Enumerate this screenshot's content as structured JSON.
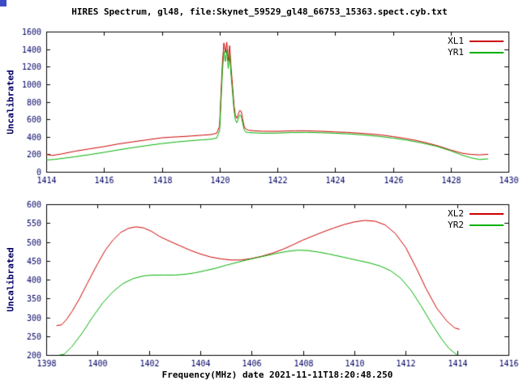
{
  "title": "HIRES Spectrum, gl48, file:Skynet_59529_gl48_66753_15363.spect.cyb.txt",
  "xlabel": "Frequency(MHz) date 2021-11-11T18:20:48.250",
  "colors": {
    "series_red": "#cc0000",
    "series_green": "#00b000",
    "axis": "#000000",
    "tick_text": "#000066",
    "corner_marker": "#3b4bc8"
  },
  "chart_data": [
    {
      "type": "line",
      "ylabel": "Uncalibrated",
      "xlim": [
        1414,
        1430
      ],
      "xtick_step": 2,
      "ylim": [
        0,
        1600
      ],
      "ytick_step": 200,
      "grid": false,
      "legend_position": "top-right",
      "series": [
        {
          "name": "XL1",
          "color": "#cc0000",
          "points": [
            [
              1414.0,
              200
            ],
            [
              1414.2,
              186
            ],
            [
              1414.5,
              202
            ],
            [
              1415.0,
              235
            ],
            [
              1415.5,
              262
            ],
            [
              1416.0,
              288
            ],
            [
              1416.5,
              318
            ],
            [
              1417.0,
              342
            ],
            [
              1417.5,
              365
            ],
            [
              1418.0,
              388
            ],
            [
              1418.3,
              395
            ],
            [
              1418.6,
              400
            ],
            [
              1419.0,
              408
            ],
            [
              1419.4,
              418
            ],
            [
              1419.7,
              425
            ],
            [
              1419.9,
              440
            ],
            [
              1420.0,
              520
            ],
            [
              1420.05,
              900
            ],
            [
              1420.1,
              1250
            ],
            [
              1420.15,
              1470
            ],
            [
              1420.2,
              1360
            ],
            [
              1420.25,
              1480
            ],
            [
              1420.3,
              1270
            ],
            [
              1420.35,
              1440
            ],
            [
              1420.4,
              1180
            ],
            [
              1420.45,
              980
            ],
            [
              1420.5,
              760
            ],
            [
              1420.55,
              640
            ],
            [
              1420.6,
              610
            ],
            [
              1420.65,
              660
            ],
            [
              1420.7,
              700
            ],
            [
              1420.75,
              690
            ],
            [
              1420.8,
              600
            ],
            [
              1420.85,
              520
            ],
            [
              1420.9,
              490
            ],
            [
              1421.0,
              475
            ],
            [
              1421.2,
              468
            ],
            [
              1421.5,
              462
            ],
            [
              1422.0,
              462
            ],
            [
              1422.3,
              465
            ],
            [
              1422.6,
              468
            ],
            [
              1423.0,
              468
            ],
            [
              1423.3,
              465
            ],
            [
              1423.6,
              462
            ],
            [
              1424.0,
              455
            ],
            [
              1424.4,
              450
            ],
            [
              1424.8,
              442
            ],
            [
              1425.2,
              432
            ],
            [
              1425.6,
              420
            ],
            [
              1426.0,
              402
            ],
            [
              1426.4,
              382
            ],
            [
              1426.8,
              358
            ],
            [
              1427.2,
              328
            ],
            [
              1427.6,
              292
            ],
            [
              1428.0,
              248
            ],
            [
              1428.4,
              212
            ],
            [
              1428.7,
              198
            ],
            [
              1429.0,
              193
            ],
            [
              1429.3,
              200
            ]
          ]
        },
        {
          "name": "YR1",
          "color": "#00b000",
          "points": [
            [
              1414.0,
              135
            ],
            [
              1414.3,
              142
            ],
            [
              1415.0,
              172
            ],
            [
              1415.5,
              196
            ],
            [
              1416.0,
              222
            ],
            [
              1416.5,
              250
            ],
            [
              1417.0,
              276
            ],
            [
              1417.5,
              300
            ],
            [
              1418.0,
              322
            ],
            [
              1418.5,
              340
            ],
            [
              1419.0,
              355
            ],
            [
              1419.4,
              365
            ],
            [
              1419.7,
              372
            ],
            [
              1419.9,
              385
            ],
            [
              1420.0,
              470
            ],
            [
              1420.05,
              800
            ],
            [
              1420.1,
              1150
            ],
            [
              1420.15,
              1370
            ],
            [
              1420.2,
              1260
            ],
            [
              1420.25,
              1390
            ],
            [
              1420.3,
              1180
            ],
            [
              1420.35,
              1340
            ],
            [
              1420.4,
              1090
            ],
            [
              1420.45,
              900
            ],
            [
              1420.5,
              700
            ],
            [
              1420.55,
              590
            ],
            [
              1420.6,
              560
            ],
            [
              1420.65,
              610
            ],
            [
              1420.7,
              650
            ],
            [
              1420.75,
              635
            ],
            [
              1420.8,
              555
            ],
            [
              1420.85,
              480
            ],
            [
              1420.9,
              455
            ],
            [
              1421.0,
              448
            ],
            [
              1421.5,
              440
            ],
            [
              1422.0,
              442
            ],
            [
              1422.5,
              448
            ],
            [
              1423.0,
              450
            ],
            [
              1423.5,
              446
            ],
            [
              1424.0,
              440
            ],
            [
              1424.5,
              432
            ],
            [
              1425.0,
              420
            ],
            [
              1425.5,
              405
            ],
            [
              1426.0,
              385
            ],
            [
              1426.5,
              360
            ],
            [
              1427.0,
              330
            ],
            [
              1427.5,
              292
            ],
            [
              1428.0,
              240
            ],
            [
              1428.4,
              190
            ],
            [
              1428.7,
              160
            ],
            [
              1429.0,
              140
            ],
            [
              1429.3,
              148
            ]
          ]
        }
      ]
    },
    {
      "type": "line",
      "ylabel": "Uncalibrated",
      "xlim": [
        1398,
        1416
      ],
      "xtick_step": 2,
      "ylim": [
        200,
        600
      ],
      "ytick_step": 50,
      "grid": false,
      "legend_position": "top-right",
      "series": [
        {
          "name": "XL2",
          "color": "#cc0000",
          "points": [
            [
              1398.4,
              278
            ],
            [
              1398.6,
              280
            ],
            [
              1398.8,
              295
            ],
            [
              1399.0,
              315
            ],
            [
              1399.3,
              350
            ],
            [
              1399.6,
              390
            ],
            [
              1400.0,
              442
            ],
            [
              1400.3,
              478
            ],
            [
              1400.6,
              505
            ],
            [
              1400.9,
              525
            ],
            [
              1401.2,
              536
            ],
            [
              1401.5,
              540
            ],
            [
              1401.8,
              537
            ],
            [
              1402.1,
              528
            ],
            [
              1402.4,
              515
            ],
            [
              1402.8,
              502
            ],
            [
              1403.2,
              490
            ],
            [
              1403.6,
              478
            ],
            [
              1404.0,
              468
            ],
            [
              1404.4,
              460
            ],
            [
              1404.8,
              455
            ],
            [
              1405.2,
              452
            ],
            [
              1405.6,
              452
            ],
            [
              1406.0,
              456
            ],
            [
              1406.4,
              462
            ],
            [
              1406.8,
              470
            ],
            [
              1407.2,
              480
            ],
            [
              1407.6,
              492
            ],
            [
              1408.0,
              505
            ],
            [
              1408.4,
              516
            ],
            [
              1408.8,
              527
            ],
            [
              1409.2,
              537
            ],
            [
              1409.6,
              546
            ],
            [
              1410.0,
              553
            ],
            [
              1410.4,
              557
            ],
            [
              1410.8,
              555
            ],
            [
              1411.2,
              545
            ],
            [
              1411.6,
              522
            ],
            [
              1412.0,
              485
            ],
            [
              1412.4,
              432
            ],
            [
              1412.8,
              375
            ],
            [
              1413.2,
              325
            ],
            [
              1413.6,
              290
            ],
            [
              1413.9,
              272
            ],
            [
              1414.1,
              268
            ]
          ]
        },
        {
          "name": "YR2",
          "color": "#00b000",
          "points": [
            [
              1398.4,
              198
            ],
            [
              1398.7,
              202
            ],
            [
              1399.0,
              222
            ],
            [
              1399.4,
              258
            ],
            [
              1399.8,
              300
            ],
            [
              1400.2,
              338
            ],
            [
              1400.6,
              368
            ],
            [
              1401.0,
              390
            ],
            [
              1401.4,
              403
            ],
            [
              1401.8,
              410
            ],
            [
              1402.2,
              412
            ],
            [
              1402.6,
              412
            ],
            [
              1403.0,
              412
            ],
            [
              1403.4,
              414
            ],
            [
              1403.8,
              418
            ],
            [
              1404.2,
              424
            ],
            [
              1404.6,
              430
            ],
            [
              1405.0,
              438
            ],
            [
              1405.4,
              445
            ],
            [
              1405.8,
              452
            ],
            [
              1406.2,
              458
            ],
            [
              1406.6,
              464
            ],
            [
              1407.0,
              470
            ],
            [
              1407.4,
              475
            ],
            [
              1407.8,
              478
            ],
            [
              1408.2,
              477
            ],
            [
              1408.6,
              473
            ],
            [
              1409.0,
              468
            ],
            [
              1409.4,
              462
            ],
            [
              1409.8,
              456
            ],
            [
              1410.2,
              450
            ],
            [
              1410.6,
              444
            ],
            [
              1411.0,
              436
            ],
            [
              1411.4,
              424
            ],
            [
              1411.8,
              404
            ],
            [
              1412.2,
              372
            ],
            [
              1412.6,
              330
            ],
            [
              1413.0,
              284
            ],
            [
              1413.4,
              242
            ],
            [
              1413.7,
              216
            ],
            [
              1414.0,
              200
            ],
            [
              1414.2,
              196
            ]
          ]
        }
      ]
    }
  ]
}
